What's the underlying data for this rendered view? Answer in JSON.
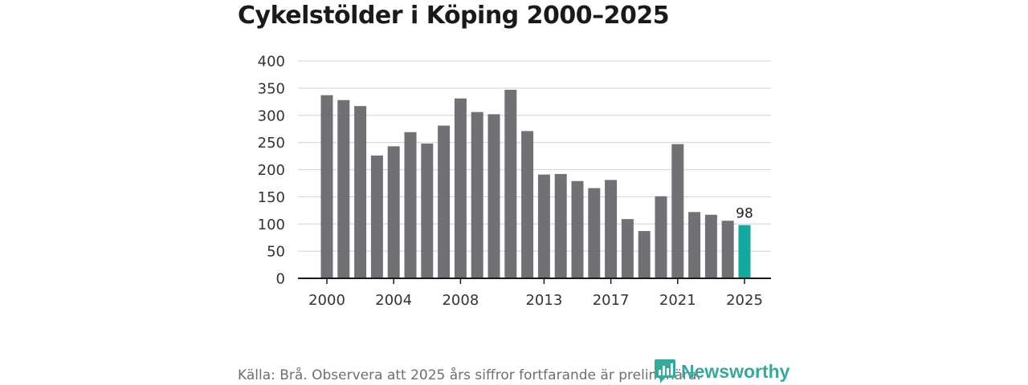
{
  "title": "Cykelstölder i Köping 2000–2025",
  "source": "Källa: Brå. Observera att 2025 års siffror fortfarande är preliminära.",
  "logo": {
    "text": "Newsworthy",
    "icon": "newsworthy-logo-icon"
  },
  "colors": {
    "bar": "#717075",
    "highlight": "#13a89e",
    "grid": "#d9d9d9",
    "axis": "#1a1a1a"
  },
  "chart_data": {
    "type": "bar",
    "title": "Cykelstölder i Köping 2000–2025",
    "xlabel": "",
    "ylabel": "",
    "categories": [
      "2000",
      "2001",
      "2002",
      "2003",
      "2004",
      "2005",
      "2006",
      "2007",
      "2008",
      "2009",
      "2010",
      "2011",
      "2012",
      "2013",
      "2014",
      "2015",
      "2016",
      "2017",
      "2018",
      "2019",
      "2020",
      "2021",
      "2022",
      "2023",
      "2024",
      "2025"
    ],
    "values": [
      337,
      328,
      317,
      226,
      243,
      269,
      248,
      281,
      331,
      306,
      302,
      347,
      271,
      191,
      192,
      179,
      166,
      181,
      109,
      87,
      151,
      247,
      122,
      117,
      106,
      98
    ],
    "ylim": [
      0,
      400
    ],
    "yticks": [
      0,
      50,
      100,
      150,
      200,
      250,
      300,
      350,
      400
    ],
    "xtick_labels": [
      "2000",
      "2004",
      "2008",
      "2013",
      "2017",
      "2021",
      "2025"
    ],
    "highlight_category": "2025",
    "data_labels": [
      {
        "category": "2025",
        "text": "98"
      }
    ],
    "grid": true
  }
}
